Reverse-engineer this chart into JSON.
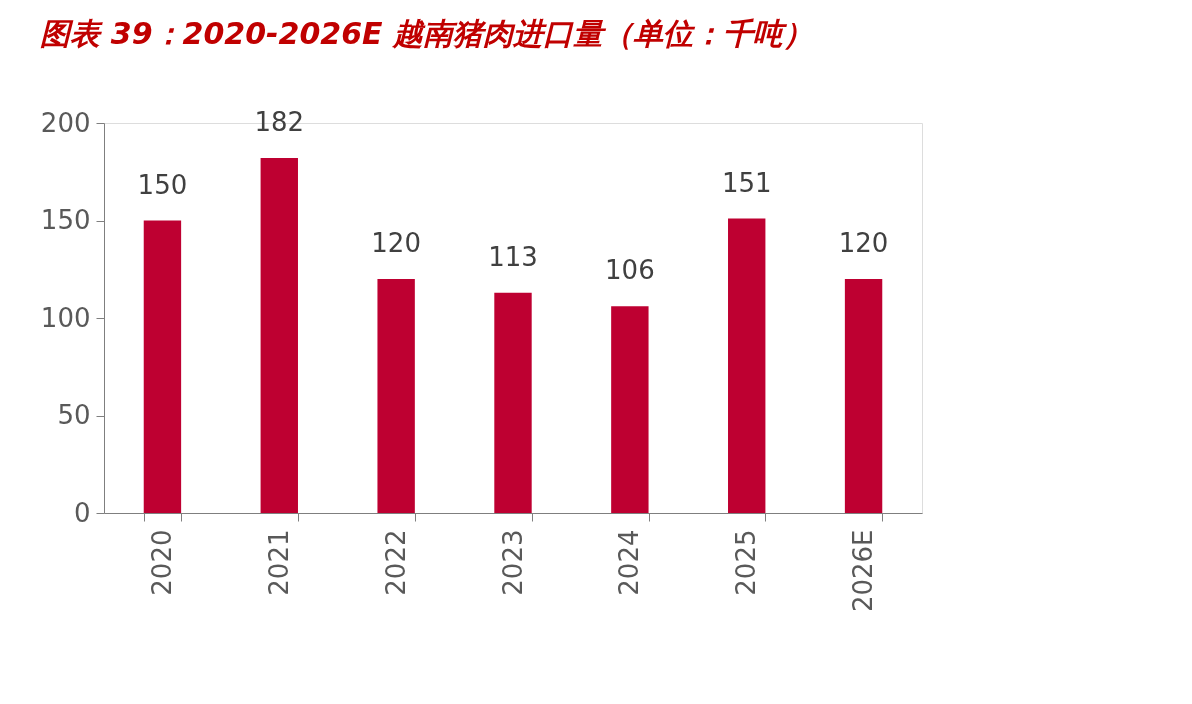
{
  "chart_data": {
    "type": "bar",
    "title": "图表 39：2020-2026E 越南猪肉进口量（单位：千吨）",
    "categories": [
      "2020",
      "2021",
      "2022",
      "2023",
      "2024",
      "2025",
      "2026E"
    ],
    "values": [
      150,
      182,
      120,
      113,
      106,
      151,
      120
    ],
    "color": "#be0031",
    "ylim": [
      0,
      200
    ],
    "yticks": [
      0,
      50,
      100,
      150,
      200
    ],
    "grid": false,
    "data_labels": true
  }
}
